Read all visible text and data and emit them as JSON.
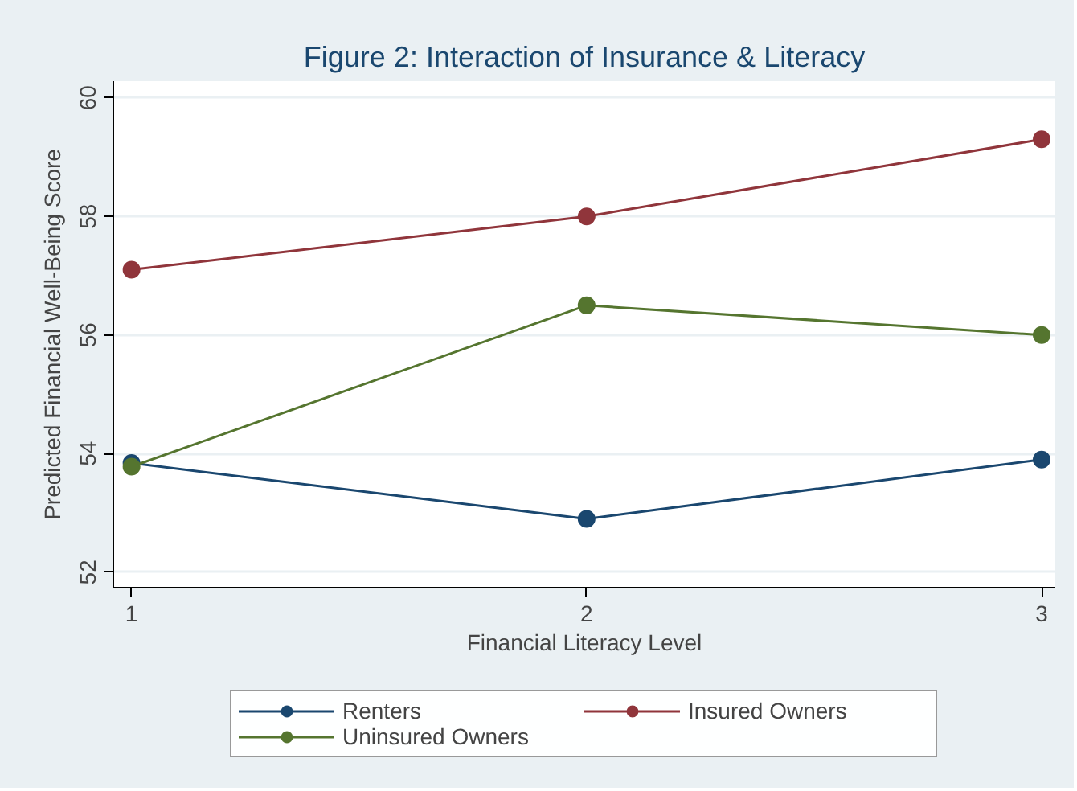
{
  "chart_data": {
    "type": "line",
    "title": "Figure 2: Interaction of Insurance & Literacy",
    "xlabel": "Financial Literacy Level",
    "ylabel": "Predicted Financial Well-Being Score",
    "x": [
      1,
      2,
      3
    ],
    "series": [
      {
        "name": "Renters",
        "color": "#1a476f",
        "values": [
          53.84,
          52.9,
          53.9
        ]
      },
      {
        "name": "Insured Owners",
        "color": "#90353b",
        "values": [
          57.1,
          58.0,
          59.3
        ]
      },
      {
        "name": "Uninsured Owners",
        "color": "#55752f",
        "values": [
          53.78,
          56.5,
          56.0
        ]
      }
    ],
    "xlim": [
      0.96,
      3.03
    ],
    "ylim": [
      51.74,
      60.28
    ],
    "xticks": [
      1,
      2,
      3
    ],
    "yticks": [
      52,
      54,
      56,
      58,
      60
    ],
    "grid": "y",
    "legend": "bottom",
    "marker": "circle",
    "line_style": "solid"
  }
}
